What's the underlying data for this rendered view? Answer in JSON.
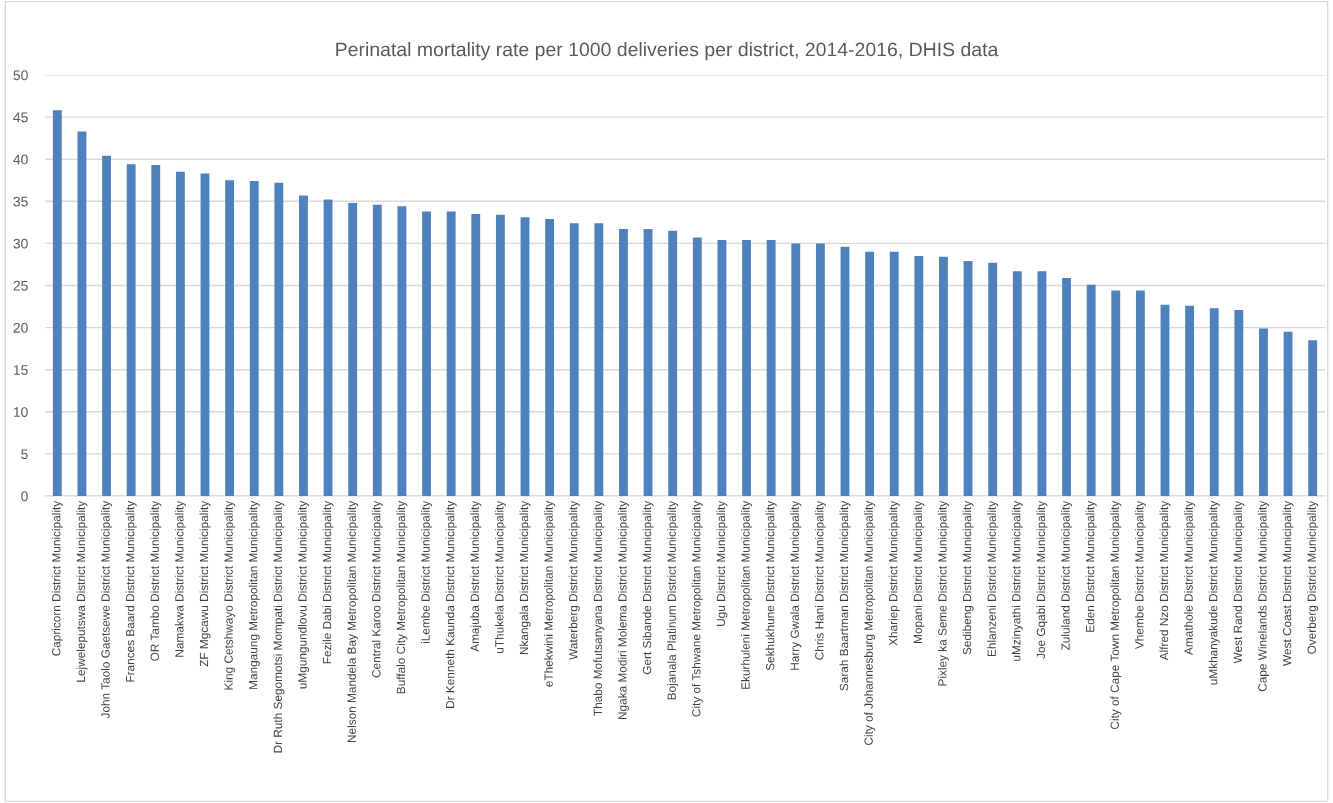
{
  "chart_data": {
    "type": "bar",
    "title": "Perinatal mortality rate per 1000 deliveries per district, 2014-2016, DHIS data",
    "categories": [
      "Capricorn District Municipality",
      "Lejweleputswa District Municipality",
      "John Taolo Gaetsewe District Municipality",
      "Frances Baard District Municipality",
      "OR Tambo District Municipality",
      "Namakwa District Municipality",
      "ZF Mgcawu District Municipality",
      "King Cetshwayo District Municipality",
      "Mangaung Metropolitan Municipality",
      "Dr Ruth Segomotsi Mompati District Municipality",
      "uMgungundlovu District Municipality",
      "Fezile Dabi District Municipality",
      "Nelson Mandela Bay Metropolitan Municipality",
      "Central Karoo District Municipality",
      "Buffalo City Metropolitan Municipality",
      "iLembe District Municipality",
      "Dr Kenneth Kaunda District Municipality",
      "Amajuba District Municipality",
      "uThukela District Municipality",
      "Nkangala District Municipality",
      "eThekwini Metropolitan Municipality",
      "Waterberg District Municipality",
      "Thabo Mofutsanyana District Municipality",
      "Ngaka Modiri Molema District Municipality",
      "Gert Sibande District Municipality",
      "Bojanala Platinum District Municipality",
      "City of Tshwane Metropolitan Municipality",
      "Ugu District Municipality",
      "Ekurhuleni Metropolitan Municipality",
      "Sekhukhune District Municipality",
      "Harry Gwala District Municipality",
      "Chris Hani District Municipality",
      "Sarah Baartman District Municipality",
      "City of Johannesburg Metropolitan Municipality",
      "Xhariep District Municipality",
      "Mopani District Municipality",
      "Pixley ka Seme District Municipality",
      "Sedibeng District Municipality",
      "Ehlanzeni District Municipality",
      "uMzinyathi District Municipality",
      "Joe Gqabi District Municipality",
      "Zululand District Municipality",
      "Eden District Municipality",
      "City of Cape Town Metropolitan Municipality",
      "Vhembe District Municipality",
      "Alfred Nzo District Municipality",
      "Amathole District Municipality",
      "uMkhanyakude District Municipality",
      "West Rand District Municipality",
      "Cape Winelands District Municipality",
      "West Coast District Municipality",
      "Overberg District Municipality"
    ],
    "values": [
      45.8,
      43.3,
      40.4,
      39.4,
      39.3,
      38.5,
      38.3,
      37.5,
      37.4,
      37.2,
      35.7,
      35.2,
      34.8,
      34.6,
      34.4,
      33.8,
      33.8,
      33.5,
      33.4,
      33.1,
      32.9,
      32.4,
      32.4,
      31.7,
      31.7,
      31.5,
      30.7,
      30.4,
      30.4,
      30.4,
      30.0,
      30.0,
      29.6,
      29.0,
      29.0,
      28.5,
      28.4,
      27.9,
      27.7,
      26.7,
      26.7,
      25.9,
      25.1,
      24.4,
      24.4,
      22.7,
      22.6,
      22.3,
      22.1,
      19.9,
      19.5,
      18.5
    ],
    "color": "#4f81bd",
    "ylim": [
      0,
      50
    ],
    "yticks": [
      0,
      5,
      10,
      15,
      20,
      25,
      30,
      35,
      40,
      45,
      50
    ],
    "grid": "y",
    "legend": false
  }
}
